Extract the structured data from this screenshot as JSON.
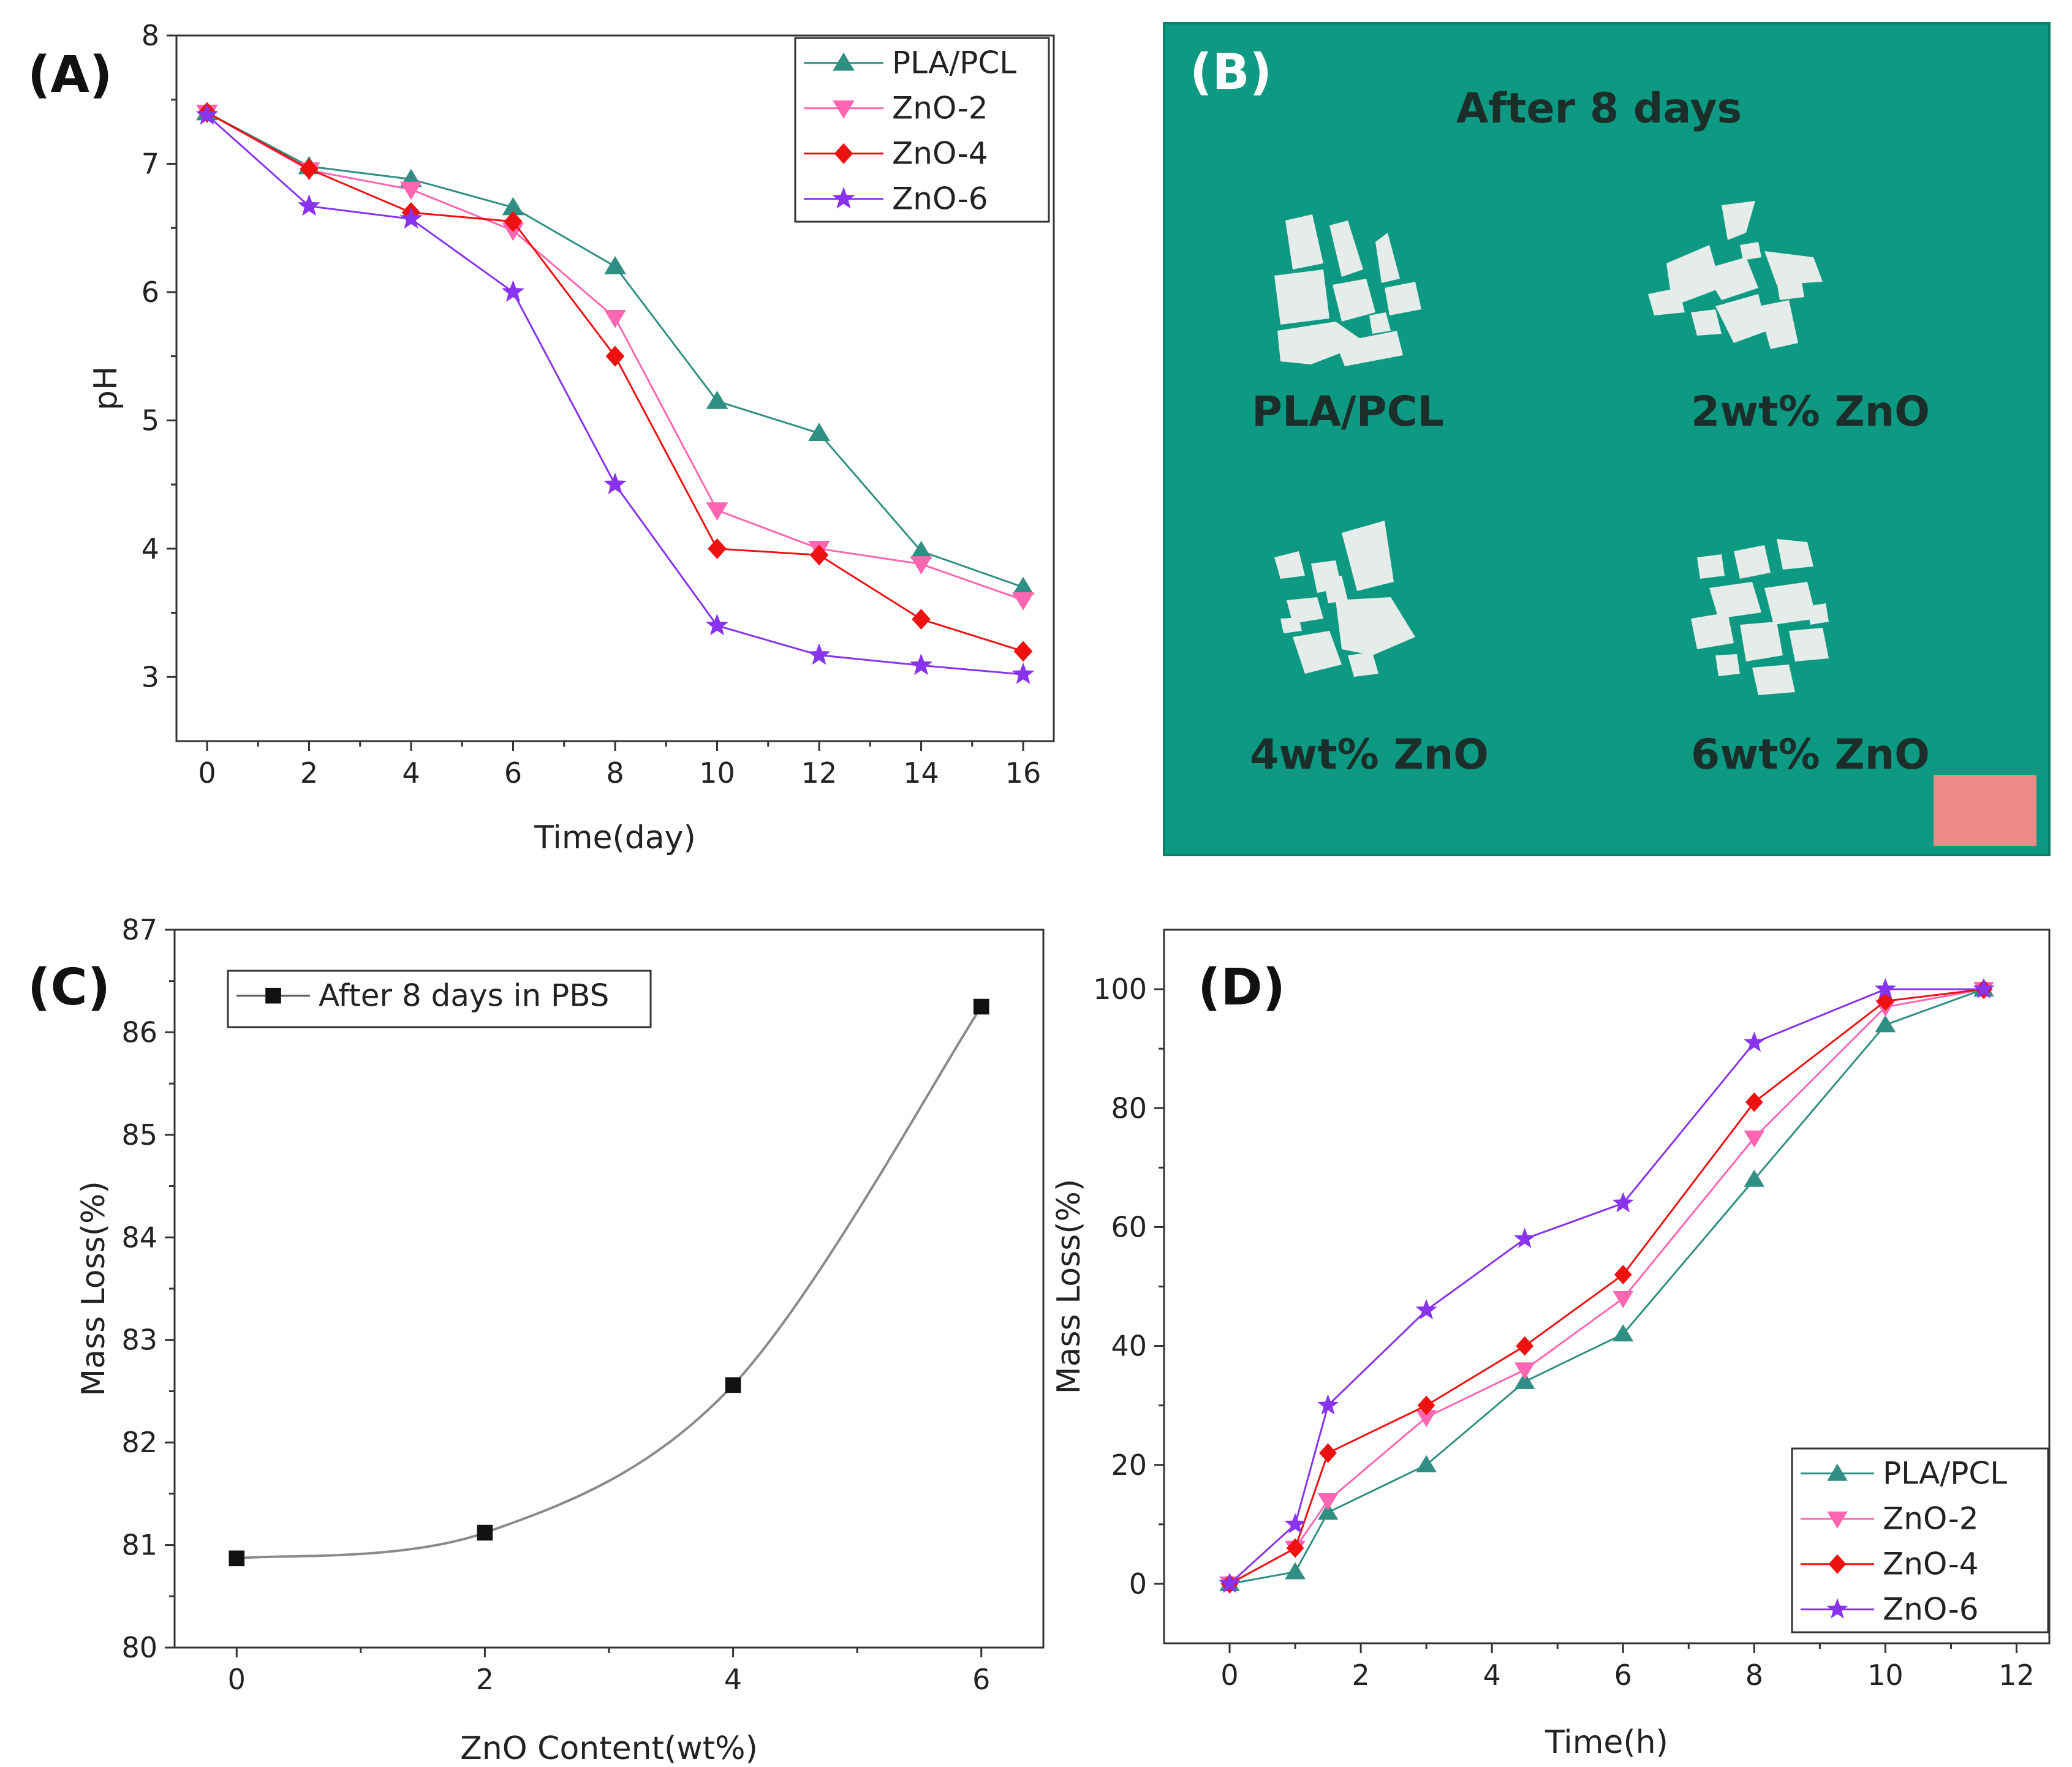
{
  "colors": {
    "pla_pcl": "#2f8f83",
    "zno2": "#ff66b2",
    "zno4": "#ee1111",
    "zno6": "#8833ee",
    "photo_bg": "#0e9a82",
    "scale_box": "#ee8a86",
    "fit_curve": "#8a8a8a"
  },
  "panel_b": {
    "letter": "(B)",
    "caption": "After 8 days",
    "labels": [
      "PLA/PCL",
      "2wt% ZnO",
      "4wt% ZnO",
      "6wt% ZnO"
    ]
  },
  "chart_data": [
    {
      "id": "A",
      "letter": "(A)",
      "type": "line",
      "xlabel": "Time(day)",
      "ylabel": "pH",
      "xlim": [
        -0.6,
        16.6
      ],
      "ylim": [
        2.5,
        8
      ],
      "xticks": [
        0,
        2,
        4,
        6,
        8,
        10,
        12,
        14,
        16
      ],
      "yticks": [
        3,
        4,
        5,
        6,
        7,
        8
      ],
      "legend_position": "top-right",
      "x": [
        0,
        2,
        4,
        6,
        8,
        10,
        12,
        14,
        16
      ],
      "series": [
        {
          "name": "PLA/PCL",
          "marker": "triangle-up",
          "color_key": "pla_pcl",
          "values": [
            7.4,
            6.98,
            6.88,
            6.66,
            6.2,
            5.15,
            4.9,
            3.98,
            3.7
          ]
        },
        {
          "name": "ZnO-2",
          "marker": "triangle-down",
          "color_key": "zno2",
          "values": [
            7.4,
            6.95,
            6.8,
            6.48,
            5.8,
            4.3,
            4.0,
            3.88,
            3.6
          ]
        },
        {
          "name": "ZnO-4",
          "marker": "diamond",
          "color_key": "zno4",
          "values": [
            7.4,
            6.96,
            6.62,
            6.55,
            5.5,
            4.0,
            3.95,
            3.45,
            3.2
          ]
        },
        {
          "name": "ZnO-6",
          "marker": "star",
          "color_key": "zno6",
          "values": [
            7.38,
            6.67,
            6.57,
            6.0,
            4.5,
            3.4,
            3.17,
            3.09,
            3.02
          ]
        }
      ]
    },
    {
      "id": "C",
      "letter": "(C)",
      "type": "scatter",
      "xlabel": "ZnO Content(wt%)",
      "ylabel": "Mass Loss(%)",
      "xlim": [
        -0.5,
        6.5
      ],
      "ylim": [
        80,
        87
      ],
      "xticks": [
        0,
        2,
        4,
        6
      ],
      "yticks": [
        80,
        81,
        82,
        83,
        84,
        85,
        86,
        87
      ],
      "legend_position": "top-left",
      "fit": "smooth curve",
      "series": [
        {
          "name": "After 8 days in PBS",
          "marker": "square",
          "color_key": "fit_curve",
          "x": [
            0,
            2,
            4,
            6
          ],
          "values": [
            80.87,
            81.12,
            82.56,
            86.25
          ]
        }
      ]
    },
    {
      "id": "D",
      "letter": "(D)",
      "type": "line",
      "xlabel": "Time(h)",
      "ylabel": "Mass Loss(%)",
      "xlim": [
        -1,
        12.5
      ],
      "ylim": [
        -10,
        110
      ],
      "xticks": [
        0,
        2,
        4,
        6,
        8,
        10,
        12
      ],
      "yticks": [
        0,
        20,
        40,
        60,
        80,
        100
      ],
      "legend_position": "bottom-right",
      "x": [
        0,
        1,
        1.5,
        3,
        4.5,
        6,
        8,
        10,
        11.5
      ],
      "series": [
        {
          "name": "PLA/PCL",
          "marker": "triangle-up",
          "color_key": "pla_pcl",
          "values": [
            0,
            2,
            12,
            20,
            34,
            42,
            68,
            94,
            100
          ]
        },
        {
          "name": "ZnO-2",
          "marker": "triangle-down",
          "color_key": "zno2",
          "values": [
            0,
            6,
            14,
            28,
            36,
            48,
            75,
            97,
            100
          ]
        },
        {
          "name": "ZnO-4",
          "marker": "diamond",
          "color_key": "zno4",
          "values": [
            0,
            6,
            22,
            30,
            40,
            52,
            81,
            98,
            100
          ]
        },
        {
          "name": "ZnO-6",
          "marker": "star",
          "color_key": "zno6",
          "values": [
            0,
            10,
            30,
            46,
            58,
            64,
            91,
            100,
            100
          ]
        }
      ]
    }
  ]
}
